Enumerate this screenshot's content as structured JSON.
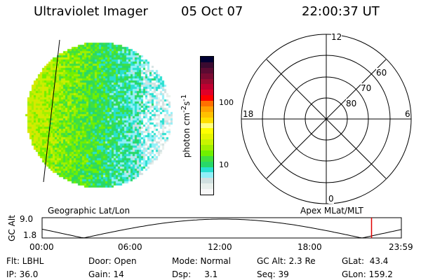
{
  "header": {
    "instrument": "Ultraviolet Imager",
    "date": "05 Oct 07",
    "time": "22:00:37 UT"
  },
  "colorbar": {
    "label": "photon cm-2s-1",
    "label_main": "photon cm",
    "sup1": "-2",
    "mid": "s",
    "sup2": "-1",
    "ticks": [
      "100",
      "10"
    ],
    "colors": [
      "#000033",
      "#3a0a30",
      "#5c0a32",
      "#7a0a32",
      "#9a0a30",
      "#c00030",
      "#e00028",
      "#ff0000",
      "#ff7000",
      "#ffa000",
      "#ffc000",
      "#ffe000",
      "#ffff80",
      "#ffff00",
      "#e6f500",
      "#c8f500",
      "#a0f000",
      "#70f000",
      "#40e040",
      "#28d868",
      "#28e0d0",
      "#90f0f8",
      "#d0e0e0",
      "#e8f0ec",
      "#f8f8f8"
    ]
  },
  "polar": {
    "labels": {
      "top": "12",
      "bottom": "0",
      "left": "18",
      "right": "6"
    },
    "rings": [
      "60",
      "70",
      "80"
    ]
  },
  "timeline": {
    "left_label": "Geographic Lat/Lon",
    "right_label": "Apex MLat/MLT",
    "ylabel": "GC Alt",
    "ymax": "9.0",
    "ymin": "1.8",
    "xticks": [
      "00:00",
      "06:00",
      "12:00",
      "18:00",
      "23:59"
    ],
    "current_time_fraction": 0.917,
    "marker_color": "#e00000"
  },
  "status": {
    "flt": "Flt: LBHL",
    "ip": "IP: 36.0",
    "door": "Door: Open",
    "gain": "Gain: 14",
    "mode": "Mode: Normal",
    "dsp": "Dsp:     3.1",
    "gcalt": "GC Alt: 2.3 Re",
    "seq": "Seq: 39",
    "glat": "GLat:  43.4",
    "glon": "GLon: 159.2"
  }
}
